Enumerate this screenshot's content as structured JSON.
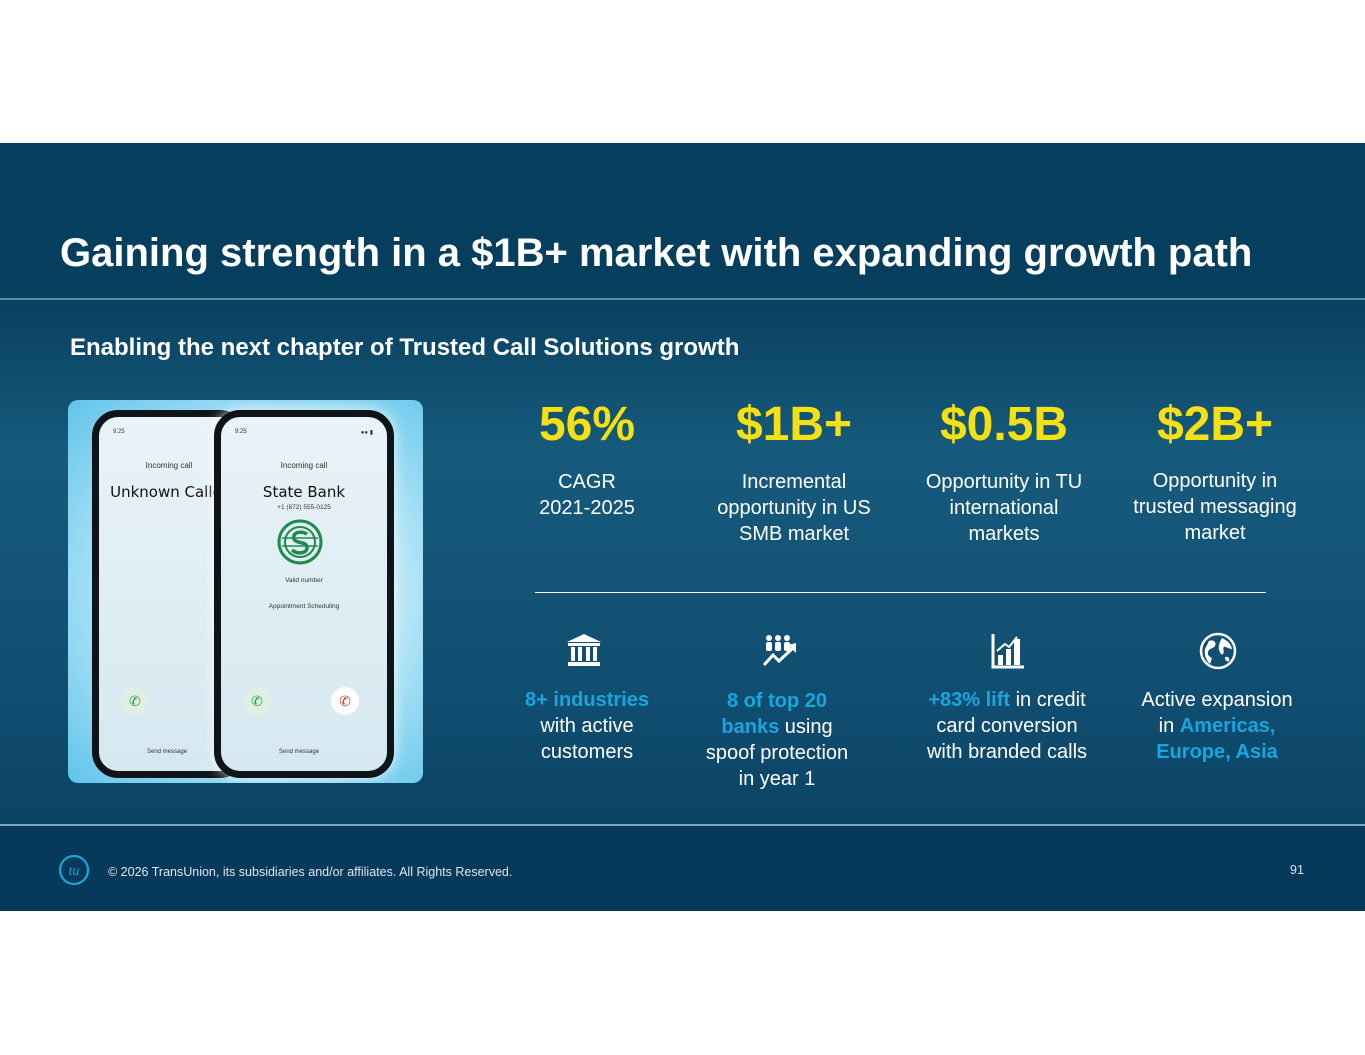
{
  "title": "Gaining strength in a $1B+ market with expanding growth path",
  "subtitle": "Enabling the next chapter of Trusted Call Solutions growth",
  "phones": {
    "back": {
      "time": "9:25",
      "incoming": "Incoming call",
      "caller": "Unknown Caller",
      "send": "Send message"
    },
    "front": {
      "time": "9:25",
      "incoming": "Incoming call",
      "caller": "State Bank",
      "number": "+1 (872) 555-0125",
      "valid": "Valid number",
      "reason": "Appointment Scheduling",
      "send": "Send message"
    }
  },
  "stats": [
    {
      "value": "56%",
      "label_lines": [
        "CAGR",
        "2021-2025"
      ]
    },
    {
      "value": "$1B+",
      "label_lines": [
        "Incremental",
        "opportunity in US",
        "SMB market"
      ]
    },
    {
      "value": "$0.5B",
      "label_lines": [
        "Opportunity in TU",
        "international",
        "markets"
      ]
    },
    {
      "value": "$2B+",
      "label_lines": [
        "Opportunity in",
        "trusted messaging",
        "market"
      ]
    }
  ],
  "features": [
    {
      "icon": "bank-icon",
      "lines": [
        [
          {
            "t": "8+ industries",
            "hl": true
          }
        ],
        [
          {
            "t": "with active",
            "hl": false
          }
        ],
        [
          {
            "t": "customers",
            "hl": false
          }
        ]
      ]
    },
    {
      "icon": "people-growth-icon",
      "lines": [
        [
          {
            "t": "8 of top 20",
            "hl": true
          }
        ],
        [
          {
            "t": "banks",
            "hl": true
          },
          {
            "t": " using",
            "hl": false
          }
        ],
        [
          {
            "t": "spoof protection",
            "hl": false
          }
        ],
        [
          {
            "t": "in year 1",
            "hl": false
          }
        ]
      ]
    },
    {
      "icon": "bar-chart-icon",
      "lines": [
        [
          {
            "t": "+83% lift",
            "hl": true
          },
          {
            "t": " in credit",
            "hl": false
          }
        ],
        [
          {
            "t": "card conversion",
            "hl": false
          }
        ],
        [
          {
            "t": "with branded calls",
            "hl": false
          }
        ]
      ]
    },
    {
      "icon": "globe-icon",
      "lines": [
        [
          {
            "t": "Active expansion",
            "hl": false
          }
        ],
        [
          {
            "t": "in ",
            "hl": false
          },
          {
            "t": "Americas,",
            "hl": true
          }
        ],
        [
          {
            "t": "Europe, Asia",
            "hl": true
          }
        ]
      ]
    }
  ],
  "footer": {
    "logo_text": "tu",
    "copyright": "© 2026 TransUnion, its subsidiaries and/or affiliates. All Rights Reserved.",
    "page_number": "91"
  },
  "colors": {
    "accent_yellow": "#f6e013",
    "highlight_blue": "#17a6de",
    "background_navy": "#063e5e"
  }
}
